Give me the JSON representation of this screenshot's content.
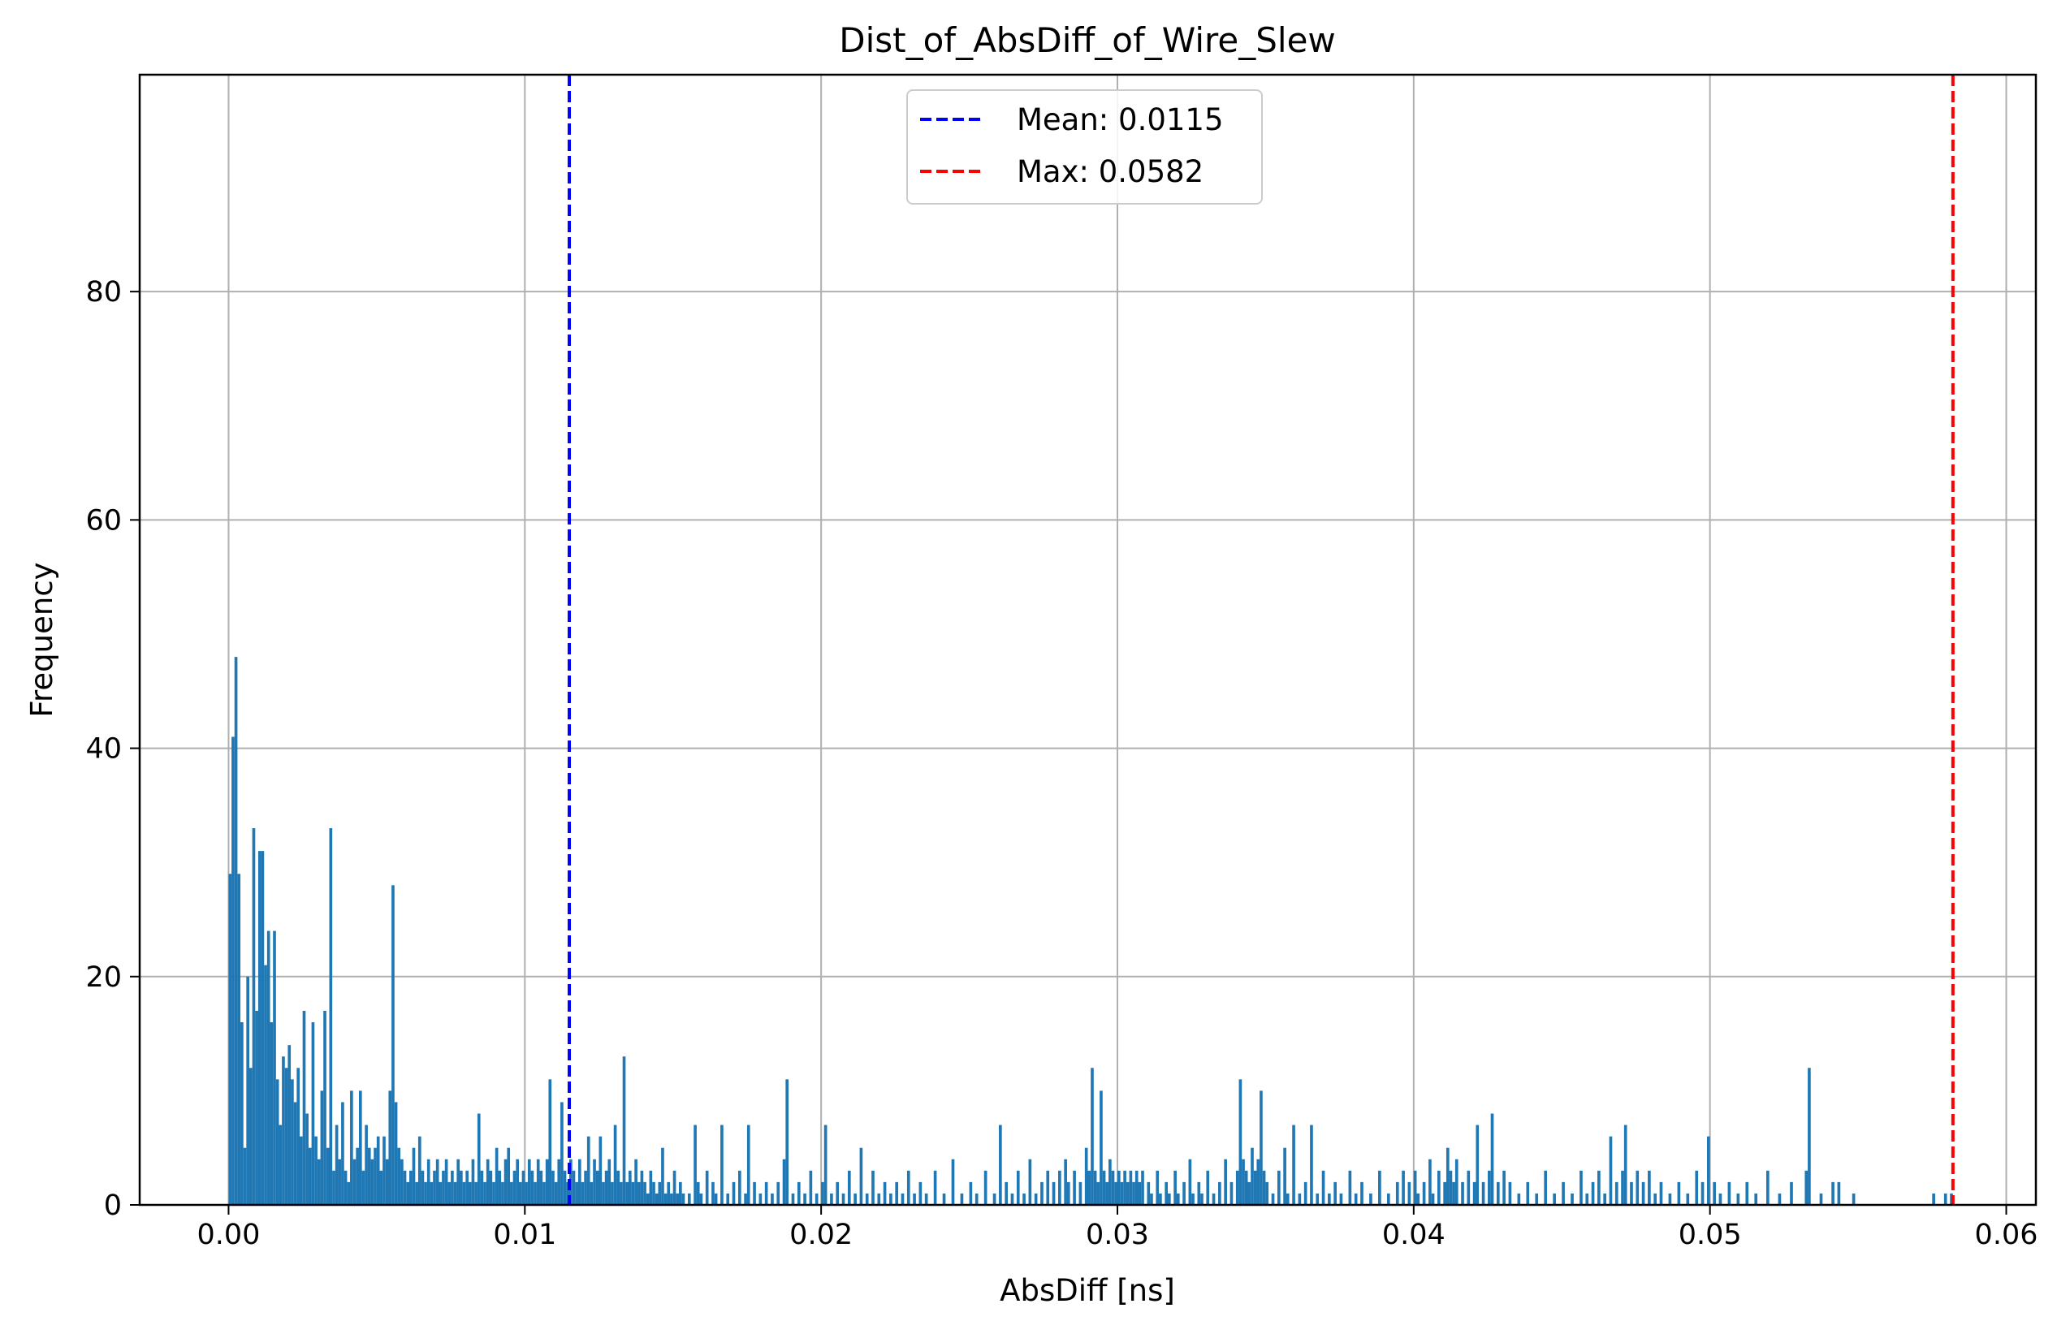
{
  "chart_data": {
    "type": "bar",
    "title": "Dist_of_AbsDiff_of_Wire_Slew",
    "xlabel": "AbsDiff [ns]",
    "ylabel": "Frequency",
    "xlim": [
      -0.003,
      0.061
    ],
    "ylim": [
      0,
      99
    ],
    "xticks": [
      {
        "value": 0.0,
        "label": "0.00"
      },
      {
        "value": 0.01,
        "label": "0.01"
      },
      {
        "value": 0.02,
        "label": "0.02"
      },
      {
        "value": 0.03,
        "label": "0.03"
      },
      {
        "value": 0.04,
        "label": "0.04"
      },
      {
        "value": 0.05,
        "label": "0.05"
      },
      {
        "value": 0.06,
        "label": "0.06"
      }
    ],
    "yticks": [
      {
        "value": 0,
        "label": "0"
      },
      {
        "value": 20,
        "label": "20"
      },
      {
        "value": 40,
        "label": "40"
      },
      {
        "value": 60,
        "label": "60"
      },
      {
        "value": 80,
        "label": "80"
      }
    ],
    "grid": true,
    "bar_color": "#1f77b4",
    "bin_width": 0.0001,
    "bins": [
      [
        0.0,
        29
      ],
      [
        0.0001,
        41
      ],
      [
        0.0002,
        48
      ],
      [
        0.0003,
        29
      ],
      [
        0.0004,
        16
      ],
      [
        0.0005,
        5
      ],
      [
        0.0006,
        20
      ],
      [
        0.0007,
        12
      ],
      [
        0.0008,
        33
      ],
      [
        0.0009,
        17
      ],
      [
        0.001,
        31
      ],
      [
        0.0011,
        31
      ],
      [
        0.0012,
        21
      ],
      [
        0.0013,
        24
      ],
      [
        0.0014,
        16
      ],
      [
        0.0015,
        24
      ],
      [
        0.0016,
        11
      ],
      [
        0.0017,
        7
      ],
      [
        0.0018,
        13
      ],
      [
        0.0019,
        12
      ],
      [
        0.002,
        14
      ],
      [
        0.0021,
        11
      ],
      [
        0.0022,
        9
      ],
      [
        0.0023,
        12
      ],
      [
        0.0024,
        6
      ],
      [
        0.0025,
        17
      ],
      [
        0.0026,
        8
      ],
      [
        0.0027,
        5
      ],
      [
        0.0028,
        16
      ],
      [
        0.0029,
        6
      ],
      [
        0.003,
        4
      ],
      [
        0.0031,
        10
      ],
      [
        0.0032,
        17
      ],
      [
        0.0033,
        5
      ],
      [
        0.0034,
        33
      ],
      [
        0.0035,
        3
      ],
      [
        0.0036,
        7
      ],
      [
        0.0037,
        4
      ],
      [
        0.0038,
        9
      ],
      [
        0.0039,
        3
      ],
      [
        0.004,
        2
      ],
      [
        0.0041,
        10
      ],
      [
        0.0042,
        4
      ],
      [
        0.0043,
        5
      ],
      [
        0.0044,
        10
      ],
      [
        0.0045,
        3
      ],
      [
        0.0046,
        7
      ],
      [
        0.0047,
        5
      ],
      [
        0.0048,
        4
      ],
      [
        0.0049,
        5
      ],
      [
        0.005,
        6
      ],
      [
        0.0051,
        3
      ],
      [
        0.0052,
        6
      ],
      [
        0.0053,
        4
      ],
      [
        0.0054,
        10
      ],
      [
        0.0055,
        28
      ],
      [
        0.0056,
        9
      ],
      [
        0.0057,
        5
      ],
      [
        0.0058,
        4
      ],
      [
        0.0059,
        3
      ],
      [
        0.006,
        2
      ],
      [
        0.0061,
        3
      ],
      [
        0.0062,
        5
      ],
      [
        0.0063,
        2
      ],
      [
        0.0064,
        6
      ],
      [
        0.0065,
        3
      ],
      [
        0.0066,
        2
      ],
      [
        0.0067,
        4
      ],
      [
        0.0068,
        2
      ],
      [
        0.0069,
        3
      ],
      [
        0.007,
        4
      ],
      [
        0.0071,
        2
      ],
      [
        0.0072,
        3
      ],
      [
        0.0073,
        4
      ],
      [
        0.0074,
        2
      ],
      [
        0.0075,
        3
      ],
      [
        0.0076,
        2
      ],
      [
        0.0077,
        4
      ],
      [
        0.0078,
        3
      ],
      [
        0.0079,
        2
      ],
      [
        0.008,
        3
      ],
      [
        0.0081,
        2
      ],
      [
        0.0082,
        4
      ],
      [
        0.0083,
        2
      ],
      [
        0.0084,
        8
      ],
      [
        0.0085,
        3
      ],
      [
        0.0086,
        2
      ],
      [
        0.0087,
        4
      ],
      [
        0.0088,
        3
      ],
      [
        0.0089,
        2
      ],
      [
        0.009,
        5
      ],
      [
        0.0091,
        3
      ],
      [
        0.0092,
        2
      ],
      [
        0.0093,
        4
      ],
      [
        0.0094,
        5
      ],
      [
        0.0095,
        2
      ],
      [
        0.0096,
        3
      ],
      [
        0.0097,
        4
      ],
      [
        0.0098,
        2
      ],
      [
        0.0099,
        3
      ],
      [
        0.01,
        2
      ],
      [
        0.0101,
        4
      ],
      [
        0.0102,
        3
      ],
      [
        0.0103,
        2
      ],
      [
        0.0104,
        4
      ],
      [
        0.0105,
        3
      ],
      [
        0.0106,
        2
      ],
      [
        0.0107,
        4
      ],
      [
        0.0108,
        11
      ],
      [
        0.0109,
        3
      ],
      [
        0.011,
        2
      ],
      [
        0.0111,
        4
      ],
      [
        0.0112,
        9
      ],
      [
        0.0113,
        3
      ],
      [
        0.0114,
        2
      ],
      [
        0.0115,
        4
      ],
      [
        0.0116,
        3
      ],
      [
        0.0117,
        2
      ],
      [
        0.0118,
        4
      ],
      [
        0.0119,
        2
      ],
      [
        0.012,
        3
      ],
      [
        0.0121,
        6
      ],
      [
        0.0122,
        2
      ],
      [
        0.0123,
        4
      ],
      [
        0.0124,
        3
      ],
      [
        0.0125,
        6
      ],
      [
        0.0126,
        2
      ],
      [
        0.0127,
        3
      ],
      [
        0.0128,
        4
      ],
      [
        0.0129,
        2
      ],
      [
        0.013,
        7
      ],
      [
        0.0131,
        3
      ],
      [
        0.0132,
        2
      ],
      [
        0.0133,
        13
      ],
      [
        0.0134,
        2
      ],
      [
        0.0135,
        3
      ],
      [
        0.0136,
        2
      ],
      [
        0.0137,
        4
      ],
      [
        0.0138,
        2
      ],
      [
        0.0139,
        3
      ],
      [
        0.014,
        2
      ],
      [
        0.0141,
        1
      ],
      [
        0.0142,
        3
      ],
      [
        0.0143,
        2
      ],
      [
        0.0144,
        1
      ],
      [
        0.0145,
        2
      ],
      [
        0.0146,
        5
      ],
      [
        0.0147,
        1
      ],
      [
        0.0148,
        2
      ],
      [
        0.0149,
        1
      ],
      [
        0.015,
        3
      ],
      [
        0.0151,
        1
      ],
      [
        0.0152,
        2
      ],
      [
        0.0153,
        1
      ],
      [
        0.0155,
        1
      ],
      [
        0.0157,
        7
      ],
      [
        0.0158,
        2
      ],
      [
        0.0159,
        1
      ],
      [
        0.0161,
        3
      ],
      [
        0.0163,
        2
      ],
      [
        0.0164,
        1
      ],
      [
        0.0166,
        7
      ],
      [
        0.0168,
        1
      ],
      [
        0.017,
        2
      ],
      [
        0.0172,
        3
      ],
      [
        0.0174,
        1
      ],
      [
        0.0175,
        7
      ],
      [
        0.0177,
        2
      ],
      [
        0.0179,
        1
      ],
      [
        0.0181,
        2
      ],
      [
        0.0183,
        1
      ],
      [
        0.0185,
        2
      ],
      [
        0.0187,
        4
      ],
      [
        0.0188,
        11
      ],
      [
        0.019,
        1
      ],
      [
        0.0192,
        2
      ],
      [
        0.0194,
        1
      ],
      [
        0.0196,
        3
      ],
      [
        0.0198,
        1
      ],
      [
        0.02,
        2
      ],
      [
        0.0201,
        7
      ],
      [
        0.0203,
        1
      ],
      [
        0.0205,
        2
      ],
      [
        0.0207,
        1
      ],
      [
        0.0209,
        3
      ],
      [
        0.0211,
        1
      ],
      [
        0.0213,
        5
      ],
      [
        0.0215,
        1
      ],
      [
        0.0217,
        3
      ],
      [
        0.0219,
        1
      ],
      [
        0.0221,
        2
      ],
      [
        0.0223,
        1
      ],
      [
        0.0225,
        2
      ],
      [
        0.0227,
        1
      ],
      [
        0.0229,
        3
      ],
      [
        0.0231,
        1
      ],
      [
        0.0233,
        2
      ],
      [
        0.0235,
        1
      ],
      [
        0.0238,
        3
      ],
      [
        0.0241,
        1
      ],
      [
        0.0244,
        4
      ],
      [
        0.0247,
        1
      ],
      [
        0.025,
        2
      ],
      [
        0.0252,
        1
      ],
      [
        0.0255,
        3
      ],
      [
        0.0258,
        1
      ],
      [
        0.026,
        7
      ],
      [
        0.0262,
        2
      ],
      [
        0.0264,
        1
      ],
      [
        0.0266,
        3
      ],
      [
        0.0268,
        1
      ],
      [
        0.027,
        4
      ],
      [
        0.0272,
        1
      ],
      [
        0.0274,
        2
      ],
      [
        0.0276,
        3
      ],
      [
        0.0278,
        2
      ],
      [
        0.028,
        3
      ],
      [
        0.0282,
        4
      ],
      [
        0.0283,
        2
      ],
      [
        0.0285,
        3
      ],
      [
        0.0287,
        2
      ],
      [
        0.0289,
        5
      ],
      [
        0.029,
        3
      ],
      [
        0.0291,
        12
      ],
      [
        0.0292,
        3
      ],
      [
        0.0293,
        2
      ],
      [
        0.0294,
        10
      ],
      [
        0.0295,
        3
      ],
      [
        0.0296,
        2
      ],
      [
        0.0297,
        4
      ],
      [
        0.0298,
        3
      ],
      [
        0.0299,
        2
      ],
      [
        0.03,
        3
      ],
      [
        0.0301,
        2
      ],
      [
        0.0302,
        3
      ],
      [
        0.0303,
        2
      ],
      [
        0.0304,
        3
      ],
      [
        0.0305,
        2
      ],
      [
        0.0306,
        3
      ],
      [
        0.0307,
        2
      ],
      [
        0.0308,
        3
      ],
      [
        0.031,
        2
      ],
      [
        0.0311,
        1
      ],
      [
        0.0313,
        3
      ],
      [
        0.0314,
        1
      ],
      [
        0.0316,
        2
      ],
      [
        0.0317,
        1
      ],
      [
        0.0319,
        3
      ],
      [
        0.032,
        1
      ],
      [
        0.0322,
        2
      ],
      [
        0.0324,
        4
      ],
      [
        0.0325,
        1
      ],
      [
        0.0327,
        2
      ],
      [
        0.0328,
        1
      ],
      [
        0.033,
        3
      ],
      [
        0.0332,
        1
      ],
      [
        0.0334,
        2
      ],
      [
        0.0336,
        4
      ],
      [
        0.0338,
        2
      ],
      [
        0.034,
        3
      ],
      [
        0.0341,
        11
      ],
      [
        0.0342,
        4
      ],
      [
        0.0343,
        3
      ],
      [
        0.0344,
        2
      ],
      [
        0.0345,
        5
      ],
      [
        0.0346,
        3
      ],
      [
        0.0347,
        4
      ],
      [
        0.0348,
        10
      ],
      [
        0.0349,
        3
      ],
      [
        0.035,
        2
      ],
      [
        0.0352,
        1
      ],
      [
        0.0354,
        3
      ],
      [
        0.0356,
        5
      ],
      [
        0.0357,
        1
      ],
      [
        0.0359,
        7
      ],
      [
        0.0361,
        1
      ],
      [
        0.0363,
        2
      ],
      [
        0.0365,
        7
      ],
      [
        0.0367,
        1
      ],
      [
        0.0369,
        3
      ],
      [
        0.0371,
        1
      ],
      [
        0.0373,
        2
      ],
      [
        0.0375,
        1
      ],
      [
        0.0378,
        3
      ],
      [
        0.038,
        1
      ],
      [
        0.0382,
        2
      ],
      [
        0.0385,
        1
      ],
      [
        0.0388,
        3
      ],
      [
        0.0391,
        1
      ],
      [
        0.0394,
        2
      ],
      [
        0.0396,
        3
      ],
      [
        0.0398,
        2
      ],
      [
        0.04,
        3
      ],
      [
        0.0401,
        1
      ],
      [
        0.0403,
        2
      ],
      [
        0.0405,
        4
      ],
      [
        0.0406,
        1
      ],
      [
        0.0408,
        3
      ],
      [
        0.041,
        2
      ],
      [
        0.0411,
        5
      ],
      [
        0.0412,
        3
      ],
      [
        0.0413,
        2
      ],
      [
        0.0414,
        4
      ],
      [
        0.0416,
        2
      ],
      [
        0.0418,
        3
      ],
      [
        0.042,
        2
      ],
      [
        0.0421,
        7
      ],
      [
        0.0423,
        2
      ],
      [
        0.0425,
        3
      ],
      [
        0.0426,
        8
      ],
      [
        0.0428,
        2
      ],
      [
        0.043,
        3
      ],
      [
        0.0432,
        2
      ],
      [
        0.0435,
        1
      ],
      [
        0.0438,
        2
      ],
      [
        0.0441,
        1
      ],
      [
        0.0444,
        3
      ],
      [
        0.0447,
        1
      ],
      [
        0.045,
        2
      ],
      [
        0.0453,
        1
      ],
      [
        0.0456,
        3
      ],
      [
        0.0458,
        1
      ],
      [
        0.046,
        2
      ],
      [
        0.0462,
        3
      ],
      [
        0.0464,
        1
      ],
      [
        0.0466,
        6
      ],
      [
        0.0468,
        2
      ],
      [
        0.047,
        3
      ],
      [
        0.0471,
        7
      ],
      [
        0.0473,
        2
      ],
      [
        0.0475,
        3
      ],
      [
        0.0477,
        2
      ],
      [
        0.0479,
        3
      ],
      [
        0.0481,
        1
      ],
      [
        0.0483,
        2
      ],
      [
        0.0486,
        1
      ],
      [
        0.0489,
        2
      ],
      [
        0.0492,
        1
      ],
      [
        0.0495,
        3
      ],
      [
        0.0497,
        2
      ],
      [
        0.0499,
        6
      ],
      [
        0.0501,
        2
      ],
      [
        0.0503,
        1
      ],
      [
        0.0506,
        2
      ],
      [
        0.0509,
        1
      ],
      [
        0.0512,
        2
      ],
      [
        0.0515,
        1
      ],
      [
        0.0519,
        3
      ],
      [
        0.0523,
        1
      ],
      [
        0.0527,
        2
      ],
      [
        0.0532,
        3
      ],
      [
        0.0533,
        12
      ],
      [
        0.0537,
        1
      ],
      [
        0.0541,
        2
      ],
      [
        0.0543,
        2
      ],
      [
        0.0548,
        1
      ],
      [
        0.0575,
        1
      ],
      [
        0.0579,
        1
      ],
      [
        0.0581,
        1
      ]
    ],
    "vlines": [
      {
        "x": 0.0115,
        "color": "#0000ff",
        "label": "Mean: 0.0115"
      },
      {
        "x": 0.0582,
        "color": "#ff0000",
        "label": "Max: 0.0582"
      }
    ],
    "legend": {
      "placement": "top-center"
    }
  }
}
